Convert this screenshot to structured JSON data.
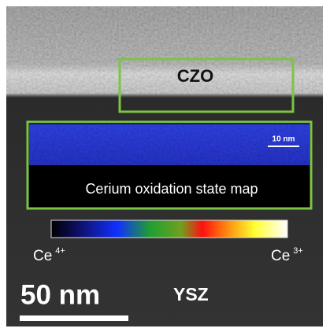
{
  "labels": {
    "region": "CZO",
    "inset_scale": "10 nm",
    "inset_title": "Cerium oxidation state map",
    "colorbar_min": {
      "element": "Ce",
      "charge": "4+"
    },
    "colorbar_max": {
      "element": "Ce",
      "charge": "3+"
    },
    "scale_bar": "50 nm",
    "substrate": "YSZ"
  }
}
